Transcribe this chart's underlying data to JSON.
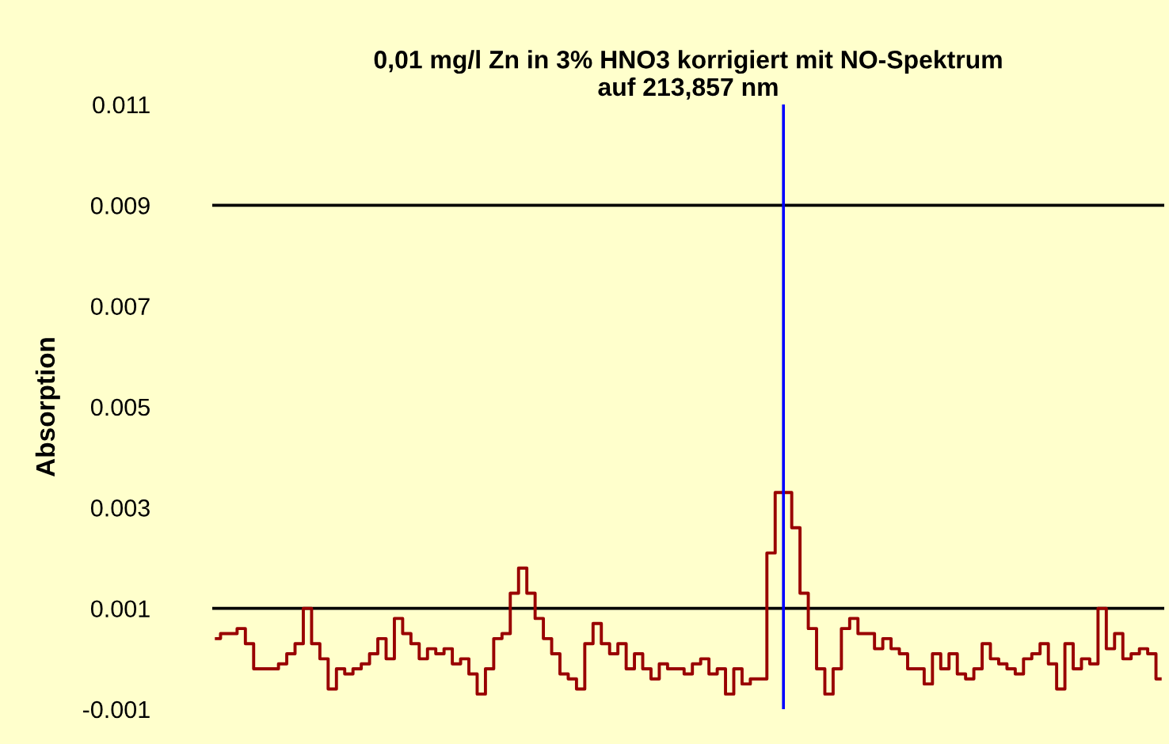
{
  "chart_data": {
    "type": "step",
    "title": "0,01 mg/l Zn in 3% HNO3 korrigiert mit NO-Spektrum\nauf 213,857 nm",
    "ylabel": "Absorption",
    "categories": [
      null,
      null,
      null,
      null,
      null,
      null,
      null,
      null,
      null,
      null,
      null,
      null,
      null,
      null,
      null,
      null,
      null,
      null,
      null,
      null,
      null,
      null,
      null,
      null,
      null,
      null,
      null,
      null,
      null,
      null,
      null,
      null,
      null,
      null,
      null,
      null,
      null,
      null,
      null,
      null,
      null,
      null,
      null,
      null,
      null,
      null,
      null,
      null,
      null,
      null,
      null,
      null,
      null,
      null,
      null,
      null,
      null,
      null,
      null,
      null,
      null,
      null,
      null,
      null,
      null,
      null,
      null,
      null,
      null,
      null,
      null,
      null,
      null,
      null,
      null,
      null,
      null,
      null,
      null,
      null,
      null,
      null,
      null,
      null,
      null,
      null,
      null,
      null,
      null,
      null,
      null,
      null,
      null,
      null,
      null,
      null,
      null,
      null,
      null,
      null,
      null,
      null,
      null,
      null,
      null,
      null,
      null,
      null,
      null,
      null,
      null,
      null,
      null,
      null,
      null
    ],
    "series": [
      {
        "color": "#990000",
        "values": [
          0.0004,
          0.0005,
          0.0005,
          0.0006,
          0.0003,
          -0.0002,
          -0.0002,
          -0.0002,
          -0.0001,
          0.0001,
          0.0003,
          0.001,
          0.0003,
          0.0,
          -0.0006,
          -0.0002,
          -0.0003,
          -0.0002,
          -0.0001,
          0.0001,
          0.0004,
          0.0,
          0.0008,
          0.0005,
          0.0003,
          0.0,
          0.0002,
          0.0001,
          0.0002,
          -0.0001,
          0.0,
          -0.0003,
          -0.0007,
          -0.0002,
          0.0004,
          0.0005,
          0.0013,
          0.0018,
          0.0013,
          0.0008,
          0.0004,
          0.0001,
          -0.0003,
          -0.0004,
          -0.0006,
          0.0003,
          0.0007,
          0.0003,
          0.0001,
          0.0003,
          -0.0002,
          0.0001,
          -0.0002,
          -0.0004,
          -0.0001,
          -0.0002,
          -0.0002,
          -0.0003,
          -0.0001,
          0.0,
          -0.0003,
          -0.0002,
          -0.0007,
          -0.0002,
          -0.0005,
          -0.0004,
          -0.0004,
          0.0021,
          0.0033,
          0.0033,
          0.0026,
          0.0013,
          0.0006,
          -0.0002,
          -0.0007,
          -0.0002,
          0.0006,
          0.0008,
          0.0005,
          0.0005,
          0.0002,
          0.0004,
          0.0002,
          0.0001,
          -0.0002,
          -0.0002,
          -0.0005,
          0.0001,
          -0.0002,
          0.0001,
          -0.0003,
          -0.0004,
          -0.0002,
          0.0003,
          0.0,
          -0.0001,
          -0.0002,
          -0.0003,
          0.0,
          0.0001,
          0.0003,
          -0.0001,
          -0.0006,
          0.0003,
          -0.0002,
          0.0,
          -0.0001,
          0.001,
          0.0002,
          0.0005,
          0.0,
          0.0001,
          0.0002,
          0.0001,
          -0.0004
        ]
      }
    ],
    "ylim": [
      -0.001,
      0.011
    ],
    "yticks": [
      {
        "value": -0.001,
        "label": "-0.001"
      },
      {
        "value": 0.001,
        "label": "0.001"
      },
      {
        "value": 0.003,
        "label": "0.003"
      },
      {
        "value": 0.005,
        "label": "0.005"
      },
      {
        "value": 0.007,
        "label": "0.007"
      },
      {
        "value": 0.009,
        "label": "0.009"
      },
      {
        "value": 0.011,
        "label": "0.011"
      }
    ],
    "tick_labels": "y",
    "ref_lines": [
      {
        "axis": "y",
        "value": 0.009,
        "color": "#000000"
      },
      {
        "axis": "y",
        "value": 0.001,
        "color": "#000000"
      }
    ]
  }
}
